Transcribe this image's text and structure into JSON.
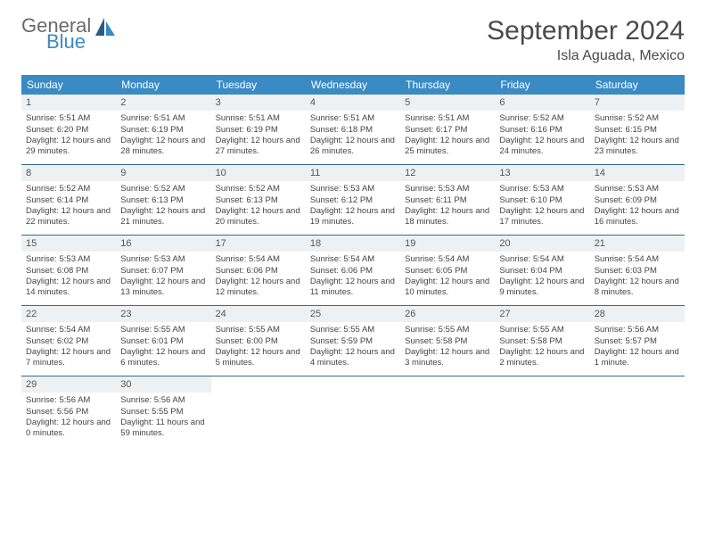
{
  "logo": {
    "line1": "General",
    "line2": "Blue"
  },
  "title": "September 2024",
  "location": "Isla Aguada, Mexico",
  "colors": {
    "header_bg": "#3a8ac4",
    "header_text": "#ffffff",
    "daynum_bg": "#eef1f3",
    "week_border": "#3a6a8a",
    "logo_gray": "#6a6a6a",
    "logo_blue": "#3a8ac4"
  },
  "dayNames": [
    "Sunday",
    "Monday",
    "Tuesday",
    "Wednesday",
    "Thursday",
    "Friday",
    "Saturday"
  ],
  "weeks": [
    [
      {
        "n": "1",
        "sr": "5:51 AM",
        "ss": "6:20 PM",
        "dl": "12 hours and 29 minutes."
      },
      {
        "n": "2",
        "sr": "5:51 AM",
        "ss": "6:19 PM",
        "dl": "12 hours and 28 minutes."
      },
      {
        "n": "3",
        "sr": "5:51 AM",
        "ss": "6:19 PM",
        "dl": "12 hours and 27 minutes."
      },
      {
        "n": "4",
        "sr": "5:51 AM",
        "ss": "6:18 PM",
        "dl": "12 hours and 26 minutes."
      },
      {
        "n": "5",
        "sr": "5:51 AM",
        "ss": "6:17 PM",
        "dl": "12 hours and 25 minutes."
      },
      {
        "n": "6",
        "sr": "5:52 AM",
        "ss": "6:16 PM",
        "dl": "12 hours and 24 minutes."
      },
      {
        "n": "7",
        "sr": "5:52 AM",
        "ss": "6:15 PM",
        "dl": "12 hours and 23 minutes."
      }
    ],
    [
      {
        "n": "8",
        "sr": "5:52 AM",
        "ss": "6:14 PM",
        "dl": "12 hours and 22 minutes."
      },
      {
        "n": "9",
        "sr": "5:52 AM",
        "ss": "6:13 PM",
        "dl": "12 hours and 21 minutes."
      },
      {
        "n": "10",
        "sr": "5:52 AM",
        "ss": "6:13 PM",
        "dl": "12 hours and 20 minutes."
      },
      {
        "n": "11",
        "sr": "5:53 AM",
        "ss": "6:12 PM",
        "dl": "12 hours and 19 minutes."
      },
      {
        "n": "12",
        "sr": "5:53 AM",
        "ss": "6:11 PM",
        "dl": "12 hours and 18 minutes."
      },
      {
        "n": "13",
        "sr": "5:53 AM",
        "ss": "6:10 PM",
        "dl": "12 hours and 17 minutes."
      },
      {
        "n": "14",
        "sr": "5:53 AM",
        "ss": "6:09 PM",
        "dl": "12 hours and 16 minutes."
      }
    ],
    [
      {
        "n": "15",
        "sr": "5:53 AM",
        "ss": "6:08 PM",
        "dl": "12 hours and 14 minutes."
      },
      {
        "n": "16",
        "sr": "5:53 AM",
        "ss": "6:07 PM",
        "dl": "12 hours and 13 minutes."
      },
      {
        "n": "17",
        "sr": "5:54 AM",
        "ss": "6:06 PM",
        "dl": "12 hours and 12 minutes."
      },
      {
        "n": "18",
        "sr": "5:54 AM",
        "ss": "6:06 PM",
        "dl": "12 hours and 11 minutes."
      },
      {
        "n": "19",
        "sr": "5:54 AM",
        "ss": "6:05 PM",
        "dl": "12 hours and 10 minutes."
      },
      {
        "n": "20",
        "sr": "5:54 AM",
        "ss": "6:04 PM",
        "dl": "12 hours and 9 minutes."
      },
      {
        "n": "21",
        "sr": "5:54 AM",
        "ss": "6:03 PM",
        "dl": "12 hours and 8 minutes."
      }
    ],
    [
      {
        "n": "22",
        "sr": "5:54 AM",
        "ss": "6:02 PM",
        "dl": "12 hours and 7 minutes."
      },
      {
        "n": "23",
        "sr": "5:55 AM",
        "ss": "6:01 PM",
        "dl": "12 hours and 6 minutes."
      },
      {
        "n": "24",
        "sr": "5:55 AM",
        "ss": "6:00 PM",
        "dl": "12 hours and 5 minutes."
      },
      {
        "n": "25",
        "sr": "5:55 AM",
        "ss": "5:59 PM",
        "dl": "12 hours and 4 minutes."
      },
      {
        "n": "26",
        "sr": "5:55 AM",
        "ss": "5:58 PM",
        "dl": "12 hours and 3 minutes."
      },
      {
        "n": "27",
        "sr": "5:55 AM",
        "ss": "5:58 PM",
        "dl": "12 hours and 2 minutes."
      },
      {
        "n": "28",
        "sr": "5:56 AM",
        "ss": "5:57 PM",
        "dl": "12 hours and 1 minute."
      }
    ],
    [
      {
        "n": "29",
        "sr": "5:56 AM",
        "ss": "5:56 PM",
        "dl": "12 hours and 0 minutes."
      },
      {
        "n": "30",
        "sr": "5:56 AM",
        "ss": "5:55 PM",
        "dl": "11 hours and 59 minutes."
      },
      null,
      null,
      null,
      null,
      null
    ]
  ],
  "labels": {
    "sunrise": "Sunrise:",
    "sunset": "Sunset:",
    "daylight": "Daylight:"
  }
}
